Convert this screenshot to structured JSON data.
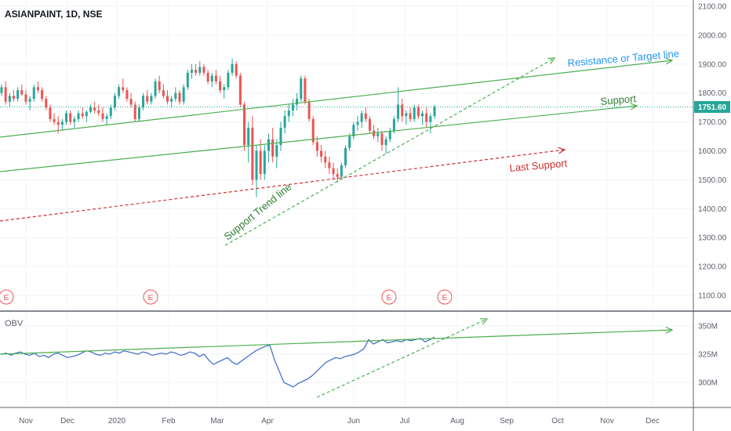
{
  "chart_data": [
    {
      "type": "candlestick",
      "title": "ASIANPAINT, 1D, NSE",
      "y_ticks": [
        1100,
        1200,
        1300,
        1400,
        1500,
        1600,
        1700,
        1800,
        1900,
        2000,
        2100
      ],
      "y_tick_labels": [
        "1100.00",
        "1200.00",
        "1300.00",
        "1400.00",
        "1500.00",
        "1600.00",
        "1700.00",
        "1800.00",
        "1900.00",
        "2000.00",
        "2100.00"
      ],
      "ylim": [
        1070,
        2120
      ],
      "last_price": 1751.6,
      "last_price_label": "1751.60",
      "x_tick_labels": [
        "Nov",
        "Dec",
        "2020",
        "Feb",
        "Mar",
        "Apr",
        "Jun",
        "Jul",
        "Aug",
        "Sep",
        "Oct",
        "Nov",
        "Dec"
      ],
      "candles_approx": [
        [
          1800,
          1830,
          1790,
          1820
        ],
        [
          1820,
          1840,
          1760,
          1770
        ],
        [
          1770,
          1800,
          1750,
          1790
        ],
        [
          1790,
          1810,
          1770,
          1780
        ],
        [
          1780,
          1820,
          1770,
          1810
        ],
        [
          1810,
          1830,
          1790,
          1795
        ],
        [
          1795,
          1810,
          1760,
          1770
        ],
        [
          1770,
          1790,
          1740,
          1780
        ],
        [
          1780,
          1830,
          1770,
          1820
        ],
        [
          1820,
          1840,
          1800,
          1810
        ],
        [
          1810,
          1820,
          1770,
          1780
        ],
        [
          1780,
          1790,
          1740,
          1750
        ],
        [
          1750,
          1760,
          1700,
          1710
        ],
        [
          1710,
          1730,
          1690,
          1700
        ],
        [
          1700,
          1720,
          1660,
          1690
        ],
        [
          1690,
          1710,
          1670,
          1700
        ],
        [
          1700,
          1740,
          1690,
          1730
        ],
        [
          1730,
          1740,
          1690,
          1700
        ],
        [
          1700,
          1720,
          1680,
          1710
        ],
        [
          1710,
          1740,
          1700,
          1730
        ],
        [
          1730,
          1750,
          1710,
          1720
        ],
        [
          1720,
          1740,
          1700,
          1735
        ],
        [
          1735,
          1760,
          1730,
          1750
        ],
        [
          1750,
          1770,
          1730,
          1740
        ],
        [
          1740,
          1760,
          1720,
          1730
        ],
        [
          1730,
          1750,
          1700,
          1710
        ],
        [
          1710,
          1730,
          1690,
          1720
        ],
        [
          1720,
          1760,
          1710,
          1750
        ],
        [
          1750,
          1800,
          1740,
          1790
        ],
        [
          1790,
          1830,
          1780,
          1820
        ],
        [
          1820,
          1850,
          1800,
          1810
        ],
        [
          1810,
          1820,
          1770,
          1780
        ],
        [
          1780,
          1800,
          1750,
          1760
        ],
        [
          1760,
          1770,
          1700,
          1710
        ],
        [
          1710,
          1760,
          1700,
          1750
        ],
        [
          1750,
          1800,
          1740,
          1790
        ],
        [
          1790,
          1810,
          1760,
          1770
        ],
        [
          1770,
          1800,
          1760,
          1790
        ],
        [
          1790,
          1850,
          1780,
          1840
        ],
        [
          1840,
          1860,
          1800,
          1810
        ],
        [
          1810,
          1830,
          1780,
          1790
        ],
        [
          1790,
          1810,
          1760,
          1770
        ],
        [
          1770,
          1790,
          1750,
          1780
        ],
        [
          1780,
          1820,
          1770,
          1800
        ],
        [
          1800,
          1810,
          1760,
          1770
        ],
        [
          1770,
          1830,
          1760,
          1820
        ],
        [
          1820,
          1880,
          1810,
          1870
        ],
        [
          1870,
          1900,
          1850,
          1880
        ],
        [
          1880,
          1900,
          1860,
          1870
        ],
        [
          1870,
          1910,
          1860,
          1890
        ],
        [
          1890,
          1900,
          1860,
          1870
        ],
        [
          1870,
          1880,
          1830,
          1840
        ],
        [
          1840,
          1870,
          1820,
          1860
        ],
        [
          1860,
          1880,
          1830,
          1840
        ],
        [
          1840,
          1860,
          1800,
          1810
        ],
        [
          1810,
          1830,
          1780,
          1820
        ],
        [
          1820,
          1880,
          1810,
          1870
        ],
        [
          1870,
          1920,
          1860,
          1900
        ],
        [
          1900,
          1910,
          1850,
          1860
        ],
        [
          1860,
          1870,
          1750,
          1760
        ],
        [
          1760,
          1770,
          1600,
          1620
        ],
        [
          1620,
          1700,
          1560,
          1680
        ],
        [
          1680,
          1720,
          1480,
          1500
        ],
        [
          1500,
          1620,
          1440,
          1600
        ],
        [
          1600,
          1640,
          1500,
          1520
        ],
        [
          1520,
          1620,
          1500,
          1600
        ],
        [
          1600,
          1660,
          1560,
          1640
        ],
        [
          1640,
          1680,
          1560,
          1580
        ],
        [
          1580,
          1640,
          1540,
          1620
        ],
        [
          1620,
          1700,
          1600,
          1680
        ],
        [
          1680,
          1740,
          1660,
          1720
        ],
        [
          1720,
          1760,
          1700,
          1740
        ],
        [
          1740,
          1780,
          1720,
          1760
        ],
        [
          1760,
          1800,
          1740,
          1780
        ],
        [
          1780,
          1860,
          1770,
          1850
        ],
        [
          1850,
          1860,
          1760,
          1770
        ],
        [
          1770,
          1780,
          1700,
          1710
        ],
        [
          1710,
          1720,
          1620,
          1630
        ],
        [
          1630,
          1650,
          1580,
          1600
        ],
        [
          1600,
          1620,
          1560,
          1580
        ],
        [
          1580,
          1600,
          1540,
          1560
        ],
        [
          1560,
          1580,
          1520,
          1540
        ],
        [
          1540,
          1560,
          1500,
          1520
        ],
        [
          1520,
          1540,
          1490,
          1510
        ],
        [
          1510,
          1560,
          1500,
          1550
        ],
        [
          1550,
          1620,
          1540,
          1610
        ],
        [
          1610,
          1660,
          1600,
          1650
        ],
        [
          1650,
          1700,
          1640,
          1690
        ],
        [
          1690,
          1720,
          1670,
          1700
        ],
        [
          1700,
          1740,
          1680,
          1730
        ],
        [
          1730,
          1750,
          1700,
          1710
        ],
        [
          1710,
          1720,
          1660,
          1670
        ],
        [
          1670,
          1690,
          1640,
          1650
        ],
        [
          1650,
          1680,
          1630,
          1660
        ],
        [
          1660,
          1670,
          1600,
          1620
        ],
        [
          1620,
          1650,
          1590,
          1640
        ],
        [
          1640,
          1680,
          1630,
          1670
        ],
        [
          1670,
          1720,
          1660,
          1710
        ],
        [
          1710,
          1820,
          1700,
          1760
        ],
        [
          1760,
          1780,
          1700,
          1720
        ],
        [
          1720,
          1740,
          1690,
          1730
        ],
        [
          1730,
          1750,
          1700,
          1710
        ],
        [
          1710,
          1760,
          1700,
          1750
        ],
        [
          1750,
          1760,
          1710,
          1720
        ],
        [
          1720,
          1740,
          1690,
          1730
        ],
        [
          1730,
          1750,
          1680,
          1700
        ],
        [
          1700,
          1730,
          1660,
          1720
        ],
        [
          1720,
          1760,
          1710,
          1752
        ]
      ],
      "overlays": {
        "resistance_label": "Resistance or Target line",
        "support_label": "Support",
        "last_support_label": "Last Support",
        "trend_label": "Support Trend line"
      },
      "event_marker_label": "E",
      "colors": {
        "up": "#26a69a",
        "down": "#ef5350",
        "support": "#4caf50",
        "last_support": "#d32f2f",
        "resistance_text": "#2196f3"
      }
    },
    {
      "type": "line",
      "name": "OBV",
      "y_ticks": [
        300,
        325,
        350
      ],
      "y_tick_labels": [
        "300M",
        "325M",
        "350M"
      ],
      "ylim": [
        280,
        362
      ],
      "values_approx": [
        325,
        326,
        324,
        326,
        327,
        325,
        324,
        326,
        323,
        324,
        322,
        325,
        326,
        324,
        322,
        323,
        324,
        326,
        328,
        327,
        325,
        324,
        326,
        325,
        327,
        326,
        328,
        327,
        326,
        325,
        327,
        326,
        324,
        325,
        326,
        325,
        327,
        326,
        324,
        325,
        327,
        326,
        323,
        325,
        320,
        316,
        318,
        320,
        322,
        318,
        316,
        319,
        322,
        325,
        328,
        330,
        332,
        333,
        320,
        310,
        300,
        298,
        296,
        299,
        301,
        303,
        306,
        310,
        314,
        318,
        320,
        322,
        321,
        323,
        324,
        325,
        327,
        330,
        338,
        334,
        336,
        338,
        335,
        336,
        337,
        336,
        338,
        337,
        338,
        339,
        336,
        338,
        340
      ],
      "line_color": "#3b6bc7"
    }
  ]
}
